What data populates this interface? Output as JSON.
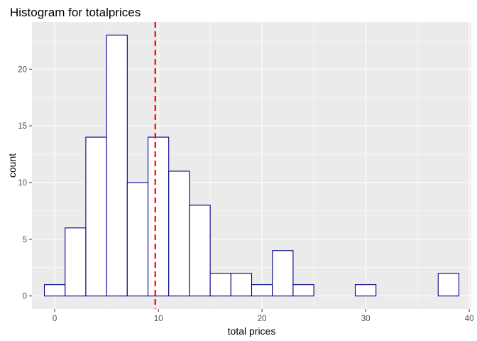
{
  "chart_data": {
    "type": "bar",
    "title": "Histogram for totalprices",
    "xlabel": "total prices",
    "ylabel": "count",
    "xlim": [
      -2.2,
      40.2
    ],
    "ylim": [
      -1.15,
      24.15
    ],
    "x_ticks": [
      0,
      10,
      20,
      30,
      40
    ],
    "y_ticks": [
      0,
      5,
      10,
      15,
      20
    ],
    "grid": true,
    "bin_width": 2,
    "bins": [
      {
        "start": -1,
        "end": 1,
        "count": 1
      },
      {
        "start": 1,
        "end": 3,
        "count": 6
      },
      {
        "start": 3,
        "end": 5,
        "count": 14
      },
      {
        "start": 5,
        "end": 7,
        "count": 23
      },
      {
        "start": 7,
        "end": 9,
        "count": 10
      },
      {
        "start": 9,
        "end": 11,
        "count": 14
      },
      {
        "start": 11,
        "end": 13,
        "count": 11
      },
      {
        "start": 13,
        "end": 15,
        "count": 8
      },
      {
        "start": 15,
        "end": 17,
        "count": 2
      },
      {
        "start": 17,
        "end": 19,
        "count": 2
      },
      {
        "start": 19,
        "end": 21,
        "count": 1
      },
      {
        "start": 21,
        "end": 23,
        "count": 4
      },
      {
        "start": 23,
        "end": 25,
        "count": 1
      },
      {
        "start": 25,
        "end": 27,
        "count": 0
      },
      {
        "start": 27,
        "end": 29,
        "count": 0
      },
      {
        "start": 29,
        "end": 31,
        "count": 1
      },
      {
        "start": 31,
        "end": 33,
        "count": 0
      },
      {
        "start": 33,
        "end": 35,
        "count": 0
      },
      {
        "start": 35,
        "end": 37,
        "count": 0
      },
      {
        "start": 37,
        "end": 39,
        "count": 2
      }
    ],
    "vline": {
      "x": 9.7,
      "style": "dashed"
    },
    "colors": {
      "panel": "#EBEBEB",
      "grid": "#FFFFFF",
      "bar_fill": "#FFFFFF",
      "bar_outline": "#00008B",
      "vline": "#FF0000"
    }
  }
}
